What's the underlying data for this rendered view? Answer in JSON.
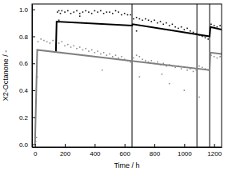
{
  "chart_data": {
    "type": "scatter",
    "xlabel": "Time / h",
    "ylabel": "X2-Octanone / -",
    "xlim": [
      -20,
      1250
    ],
    "ylim": [
      -0.02,
      1.04
    ],
    "xticks": [
      0,
      200,
      400,
      600,
      800,
      1000,
      1200
    ],
    "yticks": [
      {
        "value": 0,
        "label": "0.0"
      },
      0.2,
      0.4,
      0.6,
      0.8,
      {
        "value": 1,
        "label": "1.0"
      }
    ],
    "grid": false,
    "vlines": [
      650,
      1085,
      1170
    ],
    "vline_color": "#555555",
    "series": [
      {
        "type": "scatter",
        "marker": "square",
        "color": "#111111",
        "x": [
          150,
          160,
          160,
          170,
          180,
          200,
          220,
          240,
          260,
          280,
          300,
          300,
          320,
          340,
          360,
          380,
          400,
          420,
          440,
          460,
          480,
          500,
          520,
          540,
          560,
          580,
          600,
          620,
          640,
          660,
          680,
          680,
          700,
          720,
          740,
          760,
          780,
          800,
          820,
          840,
          860,
          880,
          900,
          920,
          940,
          960,
          980,
          1000,
          1020,
          1040,
          1060,
          1080,
          1100,
          1120,
          1140,
          1160,
          1180,
          1200,
          1220,
          1240
        ],
        "values": [
          0.98,
          0.99,
          0.92,
          0.97,
          0.99,
          0.98,
          0.99,
          0.97,
          0.98,
          0.99,
          0.97,
          0.95,
          0.98,
          0.99,
          0.98,
          0.97,
          0.99,
          0.98,
          0.99,
          0.97,
          0.98,
          0.98,
          0.97,
          0.99,
          0.98,
          0.96,
          0.97,
          0.96,
          0.96,
          0.93,
          0.94,
          0.84,
          0.93,
          0.92,
          0.93,
          0.92,
          0.91,
          0.92,
          0.9,
          0.91,
          0.89,
          0.9,
          0.88,
          0.89,
          0.87,
          0.86,
          0.87,
          0.85,
          0.86,
          0.84,
          0.83,
          0.82,
          0.81,
          0.8,
          0.79,
          0.78,
          0.89,
          0.88,
          0.87,
          0.88
        ]
      },
      {
        "type": "scatter",
        "marker": "square",
        "color": "#8c8c8c",
        "x": [
          5,
          10,
          15,
          20,
          40,
          60,
          80,
          100,
          120,
          140,
          160,
          180,
          200,
          220,
          240,
          260,
          280,
          300,
          320,
          340,
          360,
          380,
          400,
          420,
          440,
          450,
          460,
          480,
          500,
          520,
          540,
          560,
          580,
          600,
          620,
          640,
          660,
          680,
          700,
          700,
          720,
          740,
          760,
          780,
          800,
          820,
          840,
          850,
          860,
          880,
          900,
          900,
          920,
          940,
          960,
          980,
          1000,
          1000,
          1020,
          1040,
          1060,
          1080,
          1100,
          1100,
          1120,
          1140,
          1160,
          1180,
          1200,
          1220,
          1240
        ],
        "values": [
          0.02,
          0.05,
          0.5,
          0.76,
          0.78,
          0.77,
          0.76,
          0.75,
          0.77,
          0.74,
          0.75,
          0.76,
          0.73,
          0.74,
          0.72,
          0.73,
          0.71,
          0.72,
          0.7,
          0.71,
          0.69,
          0.7,
          0.68,
          0.69,
          0.67,
          0.55,
          0.68,
          0.66,
          0.67,
          0.65,
          0.66,
          0.64,
          0.65,
          0.63,
          0.62,
          0.61,
          0.64,
          0.66,
          0.65,
          0.5,
          0.63,
          0.62,
          0.61,
          0.62,
          0.6,
          0.61,
          0.59,
          0.52,
          0.6,
          0.58,
          0.59,
          0.45,
          0.58,
          0.57,
          0.58,
          0.56,
          0.57,
          0.4,
          0.55,
          0.56,
          0.54,
          0.55,
          0.58,
          0.35,
          0.57,
          0.56,
          0.55,
          0.66,
          0.65,
          0.64,
          0.65
        ]
      },
      {
        "type": "line",
        "line_style": "solid",
        "color": "#000000",
        "x": [
          140,
          145,
          650,
          655,
          1170,
          1175,
          1250
        ],
        "values": [
          0.68,
          0.91,
          0.88,
          0.89,
          0.8,
          0.87,
          0.85
        ]
      },
      {
        "type": "line",
        "line_style": "solid",
        "color": "#808080",
        "x": [
          0,
          15,
          1170,
          1175,
          1250
        ],
        "values": [
          0,
          0.7,
          0.55,
          0.68,
          0.67
        ]
      }
    ]
  }
}
